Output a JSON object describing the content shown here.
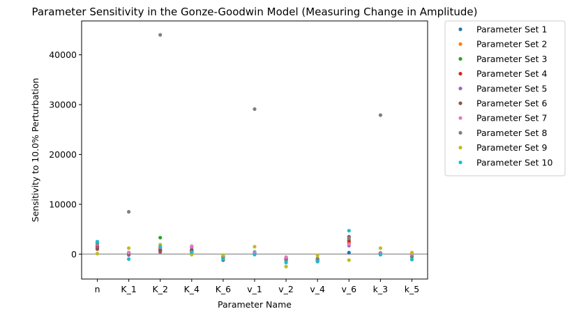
{
  "chart_data": {
    "type": "scatter",
    "title": "Parameter Sensitivity in the Gonze-Goodwin Model (Measuring Change in Amplitude)",
    "xlabel": "Parameter Name",
    "ylabel": "Sensitivity to 10.0% Perturbation",
    "categories": [
      "n",
      "K_1",
      "K_2",
      "K_4",
      "K_6",
      "v_1",
      "v_2",
      "v_4",
      "v_6",
      "k_3",
      "k_5"
    ],
    "ylim": [
      -5000,
      46800
    ],
    "yticks": [
      0,
      10000,
      20000,
      30000,
      40000
    ],
    "yticklabels": [
      "0",
      "10000",
      "20000",
      "30000",
      "40000"
    ],
    "zero_line": true,
    "legend_position": "outside-right",
    "series": [
      {
        "name": "Parameter Set 1",
        "color": "#1f77b4",
        "values": [
          2300,
          200,
          800,
          600,
          -500,
          400,
          -800,
          -1000,
          300,
          100,
          -200
        ]
      },
      {
        "name": "Parameter Set 2",
        "color": "#ff7f0e",
        "values": [
          1800,
          100,
          1200,
          700,
          -300,
          200,
          -1000,
          -1200,
          2200,
          200,
          -300
        ]
      },
      {
        "name": "Parameter Set 3",
        "color": "#2ca02c",
        "values": [
          1600,
          300,
          3300,
          900,
          -400,
          300,
          -900,
          -1100,
          2800,
          200,
          -100
        ]
      },
      {
        "name": "Parameter Set 4",
        "color": "#d62728",
        "values": [
          1400,
          200,
          900,
          800,
          -600,
          200,
          -1100,
          -1300,
          2500,
          100,
          -400
        ]
      },
      {
        "name": "Parameter Set 5",
        "color": "#9467bd",
        "values": [
          1200,
          -200,
          400,
          1400,
          -900,
          100,
          -700,
          -1500,
          1700,
          -100,
          -500
        ]
      },
      {
        "name": "Parameter Set 6",
        "color": "#8c564b",
        "values": [
          1000,
          100,
          600,
          500,
          -1200,
          200,
          -1200,
          -1400,
          3500,
          200,
          -300
        ]
      },
      {
        "name": "Parameter Set 7",
        "color": "#e377c2",
        "values": [
          2000,
          300,
          1400,
          1600,
          -700,
          300,
          -600,
          -1200,
          2000,
          100,
          -200
        ]
      },
      {
        "name": "Parameter Set 8",
        "color": "#7f7f7f",
        "values": [
          2200,
          8500,
          44000,
          300,
          -800,
          29100,
          -1300,
          -900,
          3200,
          27900,
          -600
        ]
      },
      {
        "name": "Parameter Set 9",
        "color": "#bcbd22",
        "values": [
          100,
          1200,
          1900,
          -100,
          -200,
          1500,
          -2500,
          -300,
          -1200,
          1200,
          300
        ]
      },
      {
        "name": "Parameter Set 10",
        "color": "#17becf",
        "values": [
          2500,
          -1000,
          1500,
          400,
          -1000,
          -100,
          -1700,
          -1500,
          4700,
          -100,
          -1100
        ]
      }
    ]
  }
}
